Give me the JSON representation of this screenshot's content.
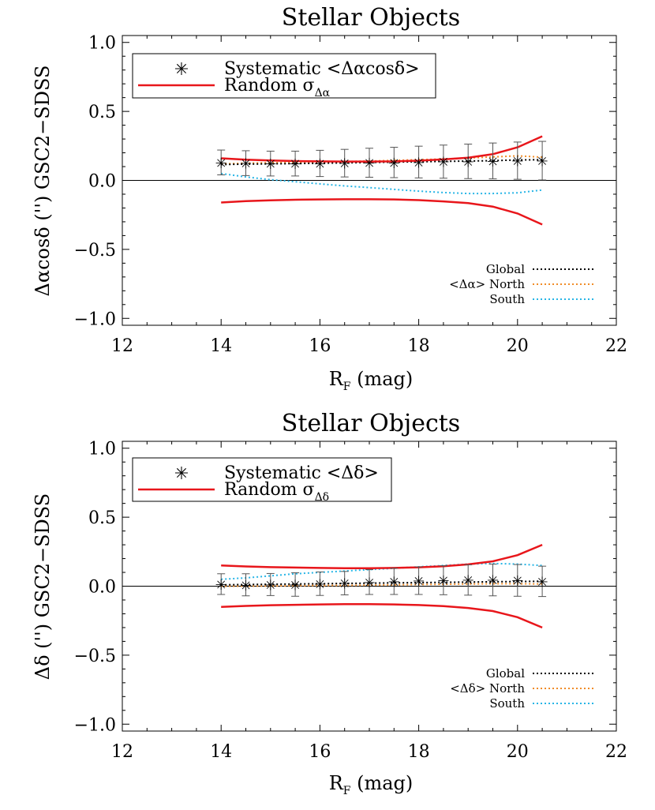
{
  "colors": {
    "random": "#e8161b",
    "global": "#000000",
    "north": "#f08c28",
    "south": "#27b5e6",
    "errorbar": "#555555",
    "zero": "#000000"
  },
  "chart_data": [
    {
      "type": "line",
      "title": "Stellar Objects",
      "xlabel_main": "R",
      "xlabel_sub": "F",
      "xlabel_rest": " (mag)",
      "ylabel": "Δαcosδ ('') GSC2−SDSS",
      "xlim": [
        12,
        22
      ],
      "ylim": [
        -1.05,
        1.05
      ],
      "xticks": [
        "12",
        "14",
        "16",
        "18",
        "20",
        "22"
      ],
      "yticks": [
        "1.0",
        "0.5",
        "0.0",
        "−0.5",
        "−1.0"
      ],
      "legend": {
        "systematic_label": "Systematic <Δαcosδ>",
        "random_label": "Random σ",
        "random_sub": "Δα"
      },
      "legend2": {
        "global": "Global",
        "north": "<Δα> North",
        "south": "South"
      },
      "x": [
        14,
        14.5,
        15,
        15.5,
        16,
        16.5,
        17,
        17.5,
        18,
        18.5,
        19,
        19.5,
        20,
        20.5
      ],
      "series": [
        {
          "key": "systematic",
          "values": [
            0.13,
            0.125,
            0.122,
            0.122,
            0.123,
            0.125,
            0.128,
            0.13,
            0.133,
            0.136,
            0.138,
            0.141,
            0.143,
            0.143
          ],
          "err": [
            0.09,
            0.09,
            0.09,
            0.09,
            0.095,
            0.1,
            0.105,
            0.11,
            0.115,
            0.12,
            0.125,
            0.13,
            0.135,
            0.14
          ]
        },
        {
          "key": "random_upper",
          "values": [
            0.16,
            0.15,
            0.145,
            0.14,
            0.138,
            0.137,
            0.137,
            0.138,
            0.143,
            0.152,
            0.165,
            0.19,
            0.24,
            0.32
          ]
        },
        {
          "key": "random_lower",
          "values": [
            -0.16,
            -0.15,
            -0.145,
            -0.14,
            -0.138,
            -0.137,
            -0.137,
            -0.138,
            -0.143,
            -0.152,
            -0.165,
            -0.19,
            -0.24,
            -0.32
          ]
        },
        {
          "key": "global",
          "values": [
            0.115,
            0.118,
            0.12,
            0.122,
            0.125,
            0.127,
            0.13,
            0.133,
            0.135,
            0.138,
            0.14,
            0.143,
            0.148,
            0.15
          ]
        },
        {
          "key": "north",
          "values": [
            0.12,
            0.125,
            0.128,
            0.13,
            0.133,
            0.137,
            0.14,
            0.145,
            0.15,
            0.155,
            0.162,
            0.17,
            0.178,
            0.168
          ]
        },
        {
          "key": "south",
          "values": [
            0.05,
            0.025,
            0.005,
            -0.01,
            -0.025,
            -0.04,
            -0.052,
            -0.065,
            -0.078,
            -0.088,
            -0.095,
            -0.095,
            -0.09,
            -0.07
          ]
        }
      ]
    },
    {
      "type": "line",
      "title": "Stellar Objects",
      "xlabel_main": "R",
      "xlabel_sub": "F",
      "xlabel_rest": " (mag)",
      "ylabel": "Δδ ('') GSC2−SDSS",
      "xlim": [
        12,
        22
      ],
      "ylim": [
        -1.05,
        1.05
      ],
      "xticks": [
        "12",
        "14",
        "16",
        "18",
        "20",
        "22"
      ],
      "yticks": [
        "1.0",
        "0.5",
        "0.0",
        "−0.5",
        "−1.0"
      ],
      "legend": {
        "systematic_label": "Systematic <Δδ>",
        "random_label": "Random σ",
        "random_sub": "Δδ"
      },
      "legend2": {
        "global": "Global",
        "north": "<Δδ> North",
        "south": "South"
      },
      "x": [
        14,
        14.5,
        15,
        15.5,
        16,
        16.5,
        17,
        17.5,
        18,
        18.5,
        19,
        19.5,
        20,
        20.5
      ],
      "series": [
        {
          "key": "systematic",
          "values": [
            0.015,
            0.01,
            0.012,
            0.012,
            0.018,
            0.022,
            0.03,
            0.035,
            0.04,
            0.043,
            0.045,
            0.045,
            0.042,
            0.035
          ],
          "err": [
            0.075,
            0.08,
            0.08,
            0.085,
            0.085,
            0.085,
            0.09,
            0.095,
            0.1,
            0.105,
            0.11,
            0.115,
            0.115,
            0.11
          ]
        },
        {
          "key": "random_upper",
          "values": [
            0.15,
            0.143,
            0.138,
            0.135,
            0.132,
            0.13,
            0.13,
            0.132,
            0.137,
            0.145,
            0.158,
            0.18,
            0.225,
            0.3
          ]
        },
        {
          "key": "random_lower",
          "values": [
            -0.15,
            -0.143,
            -0.138,
            -0.135,
            -0.132,
            -0.13,
            -0.13,
            -0.132,
            -0.137,
            -0.145,
            -0.158,
            -0.18,
            -0.225,
            -0.3
          ]
        },
        {
          "key": "global",
          "values": [
            0.01,
            0.012,
            0.014,
            0.016,
            0.018,
            0.02,
            0.022,
            0.024,
            0.026,
            0.028,
            0.03,
            0.032,
            0.034,
            0.036
          ]
        },
        {
          "key": "north",
          "values": [
            0.0,
            0.0,
            0.002,
            0.004,
            0.005,
            0.006,
            0.008,
            0.01,
            0.012,
            0.014,
            0.016,
            0.018,
            0.018,
            0.016
          ]
        },
        {
          "key": "south",
          "values": [
            0.05,
            0.06,
            0.075,
            0.09,
            0.1,
            0.11,
            0.12,
            0.13,
            0.14,
            0.15,
            0.16,
            0.165,
            0.16,
            0.15
          ]
        }
      ]
    }
  ]
}
